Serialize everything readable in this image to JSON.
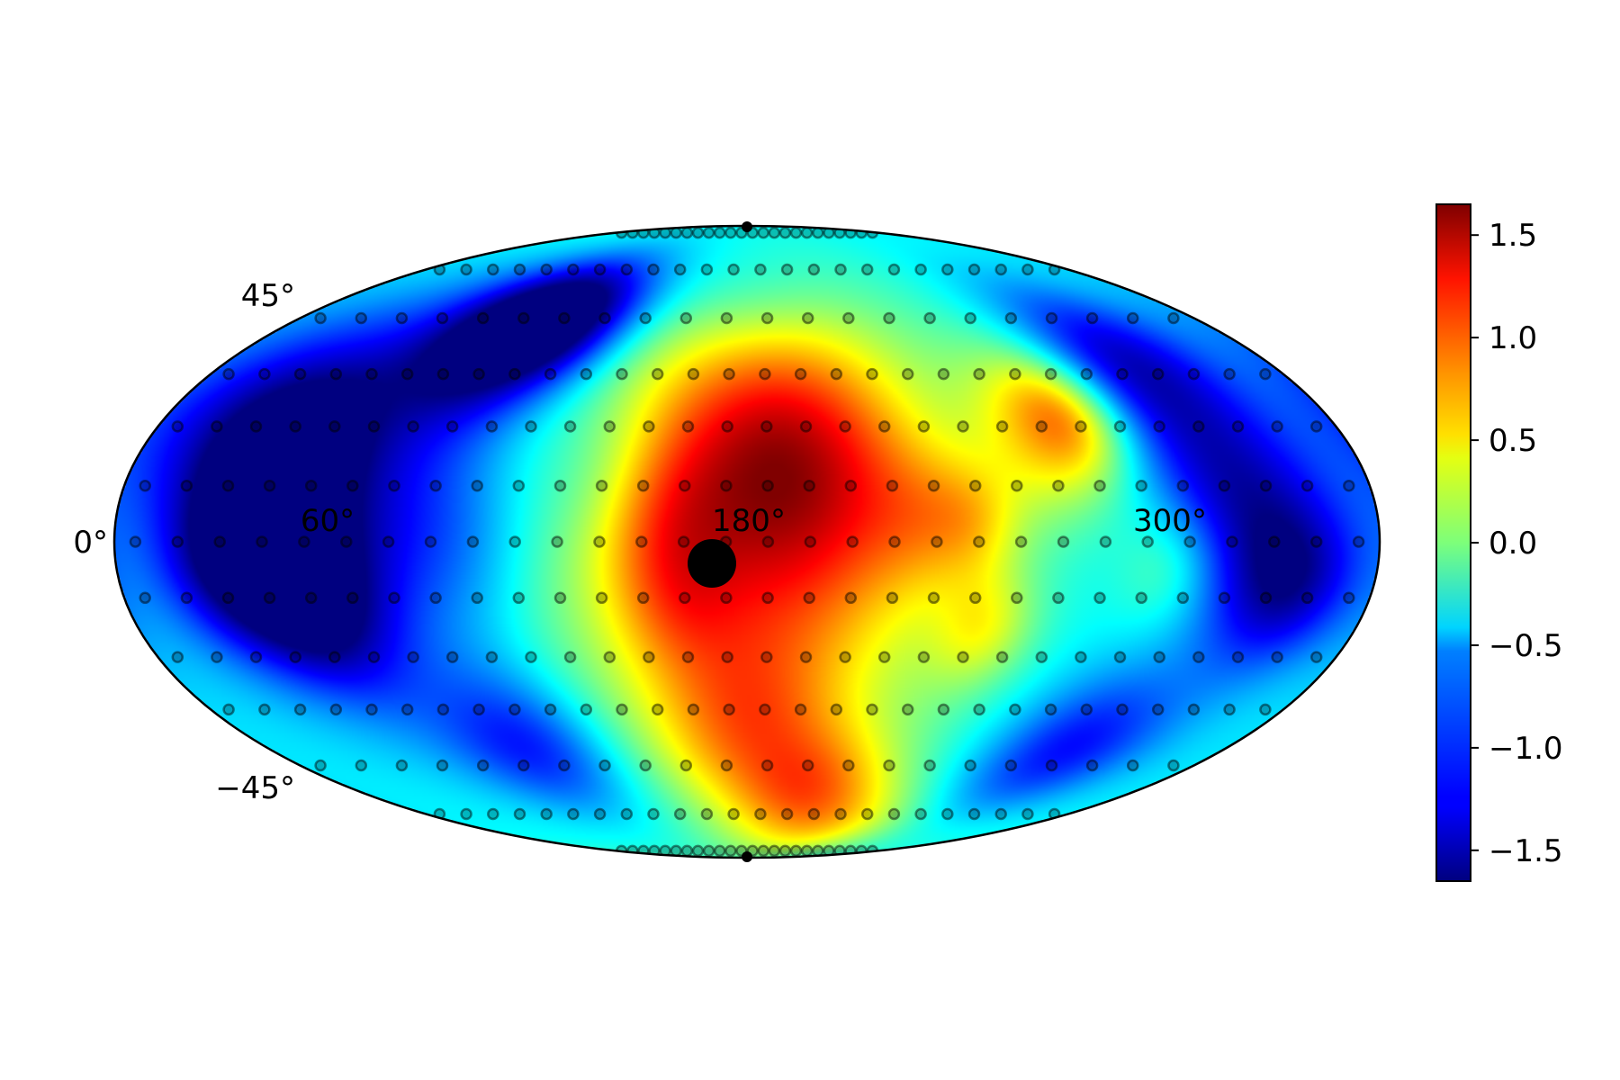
{
  "chart_data": {
    "type": "heatmap",
    "projection": "mollweide",
    "colormap": "jet",
    "grid": false,
    "longitude_tick_labels": [
      "0°",
      "60°",
      "180°",
      "300°"
    ],
    "latitude_tick_labels": [
      "45°",
      "−45°"
    ],
    "colorbar": {
      "location": "right",
      "range": [
        -1.65,
        1.65
      ],
      "tick_labels": [
        "1.5",
        "1.0",
        "0.5",
        "0.0",
        "−0.5",
        "−1.0",
        "−1.5"
      ],
      "tick_values": [
        1.5,
        1.0,
        0.5,
        0.0,
        -0.5,
        -1.0,
        -1.5
      ]
    },
    "field_blobs": [
      {
        "lon": 180,
        "lat": 0,
        "value": 1.2,
        "width_deg": 42
      },
      {
        "lon": 185,
        "lat": 25,
        "value": 0.6,
        "width_deg": 25
      },
      {
        "lon": 200,
        "lat": 15,
        "value": 0.5,
        "width_deg": 22
      },
      {
        "lon": 155,
        "lat": 5,
        "value": 0.4,
        "width_deg": 14
      },
      {
        "lon": 160,
        "lat": -15,
        "value": 0.3,
        "width_deg": 12
      },
      {
        "lon": 230,
        "lat": 5,
        "value": 0.35,
        "width_deg": 12
      },
      {
        "lon": 245,
        "lat": 5,
        "value": 0.45,
        "width_deg": 10
      },
      {
        "lon": 250,
        "lat": -20,
        "value": 0.55,
        "width_deg": 10
      },
      {
        "lon": 180,
        "lat": -45,
        "value": 0.7,
        "width_deg": 16
      },
      {
        "lon": 210,
        "lat": -62,
        "value": 0.8,
        "width_deg": 12
      },
      {
        "lon": 240,
        "lat": -75,
        "value": 0.5,
        "width_deg": 10
      },
      {
        "lon": 180,
        "lat": 60,
        "value": -0.3,
        "width_deg": 14
      },
      {
        "lon": 270,
        "lat": 25,
        "value": 0.8,
        "width_deg": 14
      },
      {
        "lon": 280,
        "lat": 30,
        "value": 0.6,
        "width_deg": 10
      },
      {
        "lon": 300,
        "lat": -5,
        "value": 0.4,
        "width_deg": 10
      },
      {
        "lon": 60,
        "lat": 10,
        "value": -1.0,
        "width_deg": 30
      },
      {
        "lon": 45,
        "lat": 20,
        "value": -0.7,
        "width_deg": 14
      },
      {
        "lon": 35,
        "lat": -5,
        "value": -0.9,
        "width_deg": 14
      },
      {
        "lon": 55,
        "lat": -15,
        "value": -0.8,
        "width_deg": 14
      },
      {
        "lon": 20,
        "lat": 30,
        "value": -0.6,
        "width_deg": 18
      },
      {
        "lon": 90,
        "lat": 50,
        "value": -1.2,
        "width_deg": 14
      },
      {
        "lon": 110,
        "lat": 55,
        "value": -1.0,
        "width_deg": 12
      },
      {
        "lon": 320,
        "lat": 15,
        "value": -0.9,
        "width_deg": 18
      },
      {
        "lon": 335,
        "lat": -10,
        "value": -1.0,
        "width_deg": 14
      },
      {
        "lon": 310,
        "lat": 45,
        "value": -0.8,
        "width_deg": 14
      },
      {
        "lon": 100,
        "lat": -50,
        "value": -0.8,
        "width_deg": 14
      },
      {
        "lon": 300,
        "lat": -50,
        "value": -0.8,
        "width_deg": 14
      },
      {
        "lon": 140,
        "lat": 15,
        "value": -0.3,
        "width_deg": 14
      },
      {
        "lon": 100,
        "lat": 0,
        "value": -0.2,
        "width_deg": 14
      }
    ],
    "field_background": -0.45,
    "sample_rows": [
      {
        "lat": -85,
        "count": 24
      },
      {
        "lat": -70,
        "count": 24
      },
      {
        "lat": -55,
        "count": 22
      },
      {
        "lat": -40,
        "count": 30
      },
      {
        "lat": -27,
        "count": 30
      },
      {
        "lat": -13,
        "count": 30
      },
      {
        "lat": 0,
        "count": 30
      },
      {
        "lat": 13,
        "count": 30
      },
      {
        "lat": 27,
        "count": 30
      },
      {
        "lat": 40,
        "count": 30
      },
      {
        "lat": 55,
        "count": 22
      },
      {
        "lat": 70,
        "count": 24
      },
      {
        "lat": 85,
        "count": 24
      }
    ],
    "highlight_point": {
      "lon": 170,
      "lat": -5
    },
    "pole_markers": [
      {
        "lat": 90
      },
      {
        "lat": -90
      }
    ]
  }
}
